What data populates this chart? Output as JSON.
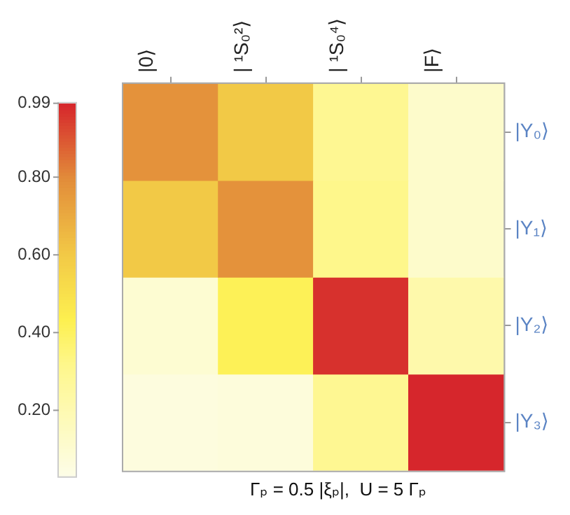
{
  "chart_data": {
    "type": "heatmap",
    "xlabel": "Γₚ = 0.5 |ξₚ|,  U = 5 Γₚ",
    "categories": [
      "|0⟩",
      "| ¹S₀²⟩",
      "| ¹S₀⁴⟩",
      "|F⟩"
    ],
    "y_categories": [
      "|Y₀⟩",
      "|Y₁⟩",
      "|Y₂⟩",
      "|Y₃⟩"
    ],
    "cells": [
      [
        0.78,
        0.6,
        0.3,
        0.12
      ],
      [
        0.6,
        0.78,
        0.32,
        0.12
      ],
      [
        0.1,
        0.42,
        0.97,
        0.22
      ],
      [
        0.06,
        0.07,
        0.3,
        0.99
      ]
    ],
    "clim": [
      0.03,
      0.99
    ],
    "cticks": [
      {
        "value": 0.2,
        "label": "0.20"
      },
      {
        "value": 0.4,
        "label": "0.40"
      },
      {
        "value": 0.6,
        "label": "0.60"
      },
      {
        "value": 0.8,
        "label": "0.80"
      },
      0.99
    ]
  }
}
